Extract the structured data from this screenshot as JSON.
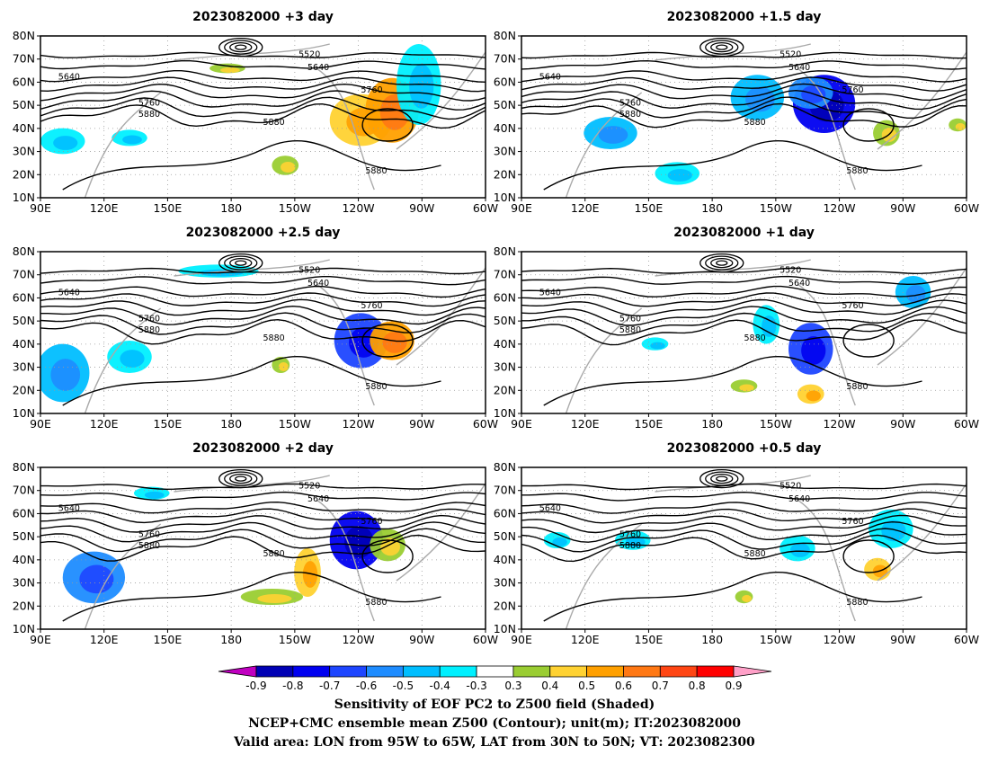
{
  "panels": [
    {
      "title": "2023082000  +3 day",
      "label_5640": "5640",
      "label_5520": "5520",
      "label_5760": "5760",
      "label_5880": "5880"
    },
    {
      "title": "2023082000  +1.5 day",
      "label_5640": "5640",
      "label_5520": "5520",
      "label_5760": "5760",
      "label_5880": "5880"
    },
    {
      "title": "2023082000  +2.5 day",
      "label_5640": "5640",
      "label_5520": "5520",
      "label_5760": "5760",
      "label_5880": "5880"
    },
    {
      "title": "2023082000  +1 day",
      "label_5640": "5640",
      "label_5520": "5520",
      "label_5760": "5760",
      "label_5880": "5880"
    },
    {
      "title": "2023082000  +2 day",
      "label_5640": "5640",
      "label_5520": "5520",
      "label_5760": "5760",
      "label_5880": "5880"
    },
    {
      "title": "2023082000  +0.5 day",
      "label_5640": "5640",
      "label_5520": "5520",
      "label_5760": "5760",
      "label_5880": "5880"
    }
  ],
  "axes": {
    "lon_labels": [
      "90E",
      "120E",
      "150E",
      "180",
      "150W",
      "120W",
      "90W",
      "60W"
    ],
    "lat_labels": [
      "10N",
      "20N",
      "30N",
      "40N",
      "50N",
      "60N",
      "70N",
      "80N"
    ],
    "lon_range": [
      90,
      300
    ],
    "lat_range": [
      10,
      80
    ]
  },
  "colorbar": {
    "levels": [
      "-0.9",
      "-0.8",
      "-0.7",
      "-0.6",
      "-0.5",
      "-0.4",
      "-0.3",
      "0.3",
      "0.4",
      "0.5",
      "0.6",
      "0.7",
      "0.8",
      "0.9"
    ],
    "colors": [
      "#c000c0",
      "#0000b4",
      "#0000f0",
      "#1e46ff",
      "#1e8cff",
      "#00beff",
      "#00f0ff",
      "#ffffff",
      "#9acd32",
      "#ffd232",
      "#ffa000",
      "#ff7814",
      "#ff4614",
      "#ff0000",
      "#ffa0c8"
    ]
  },
  "captions": [
    "Sensitivity of EOF PC2 to Z500 field (Shaded)",
    "NCEP+CMC ensemble mean Z500 (Contour); unit(m); IT:2023082000",
    "Valid area: LON from 95W to 65W, LAT from 30N to 50N; VT: 2023082300"
  ]
}
